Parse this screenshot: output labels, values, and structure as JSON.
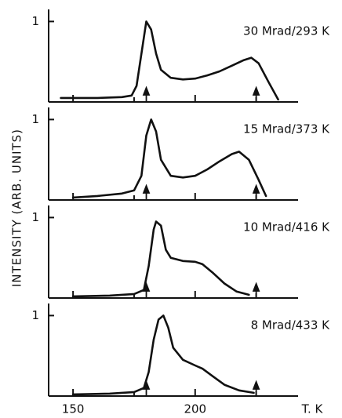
{
  "chart_data": {
    "type": "line",
    "ylabel": "INTENSITY (ARB. UNITS)",
    "xlabel": "T. K",
    "xlim": [
      140,
      255
    ],
    "xticks": [
      150,
      200
    ],
    "xminor": [
      175,
      225
    ],
    "color": "#111111",
    "panels": [
      {
        "title": "30 Mrad/293 K",
        "ylim": [
          0,
          1.15
        ],
        "yticks": [
          1
        ],
        "arrows": [
          180,
          225
        ],
        "x": [
          145,
          160,
          170,
          174,
          176,
          178,
          180,
          182,
          184,
          186,
          190,
          195,
          200,
          205,
          210,
          215,
          220,
          223,
          226,
          230,
          234
        ],
        "values": [
          0.05,
          0.05,
          0.06,
          0.08,
          0.2,
          0.6,
          1.0,
          0.9,
          0.6,
          0.4,
          0.3,
          0.28,
          0.29,
          0.33,
          0.38,
          0.45,
          0.52,
          0.55,
          0.48,
          0.25,
          0.03
        ]
      },
      {
        "title": "15 Mrad/373 K",
        "ylim": [
          0,
          1.15
        ],
        "yticks": [
          1
        ],
        "arrows": [
          180,
          225
        ],
        "x": [
          150,
          160,
          170,
          175,
          178,
          180,
          182,
          184,
          186,
          190,
          195,
          200,
          205,
          210,
          215,
          218,
          222,
          226,
          229
        ],
        "values": [
          0.03,
          0.05,
          0.08,
          0.12,
          0.3,
          0.8,
          1.0,
          0.85,
          0.5,
          0.3,
          0.28,
          0.3,
          0.38,
          0.48,
          0.57,
          0.6,
          0.5,
          0.25,
          0.05
        ]
      },
      {
        "title": "10 Mrad/416 K",
        "ylim": [
          0,
          1.15
        ],
        "yticks": [
          1
        ],
        "arrows": [
          180,
          225
        ],
        "x": [
          150,
          165,
          175,
          179,
          181,
          183,
          184,
          186,
          188,
          190,
          195,
          200,
          203,
          207,
          212,
          217,
          222
        ],
        "values": [
          0.02,
          0.03,
          0.05,
          0.1,
          0.4,
          0.85,
          0.95,
          0.9,
          0.6,
          0.5,
          0.46,
          0.45,
          0.42,
          0.32,
          0.18,
          0.08,
          0.04
        ]
      },
      {
        "title": "8 Mrad/433 K",
        "ylim": [
          0,
          1.15
        ],
        "yticks": [
          1
        ],
        "arrows": [
          180,
          225
        ],
        "x": [
          150,
          165,
          175,
          179,
          181,
          183,
          185,
          187,
          189,
          191,
          195,
          200,
          203,
          207,
          212,
          218,
          224
        ],
        "values": [
          0.02,
          0.03,
          0.05,
          0.1,
          0.3,
          0.7,
          0.95,
          1.0,
          0.85,
          0.6,
          0.45,
          0.38,
          0.34,
          0.25,
          0.14,
          0.07,
          0.04
        ]
      }
    ]
  }
}
